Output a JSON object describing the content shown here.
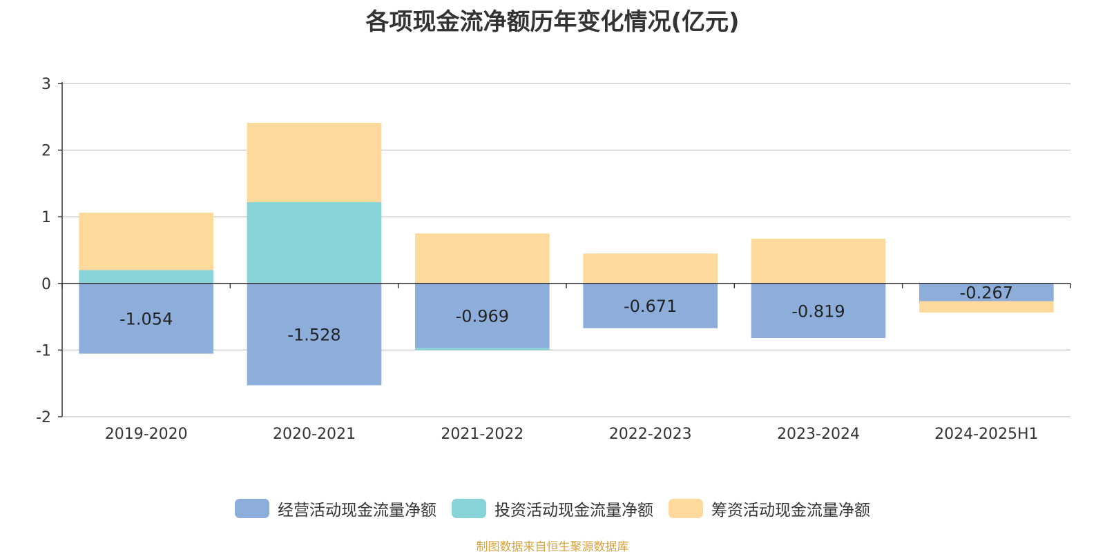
{
  "title": "各项现金流净额历年变化情况(亿元)",
  "source_note": "制图数据来自恒生聚源数据库",
  "colors": {
    "operating": "#8DAEDB",
    "investing": "#86D4D8",
    "financing": "#FED99B",
    "source": "#D9A441"
  },
  "chart_data": {
    "type": "bar",
    "stacked": true,
    "title": "各项现金流净额历年变化情况(亿元)",
    "categories": [
      "2019-2020",
      "2020-2021",
      "2021-2022",
      "2022-2023",
      "2023-2024",
      "2024-2025H1"
    ],
    "ylim": [
      -2,
      3
    ],
    "yticks": [
      -2,
      -1,
      0,
      1,
      2,
      3
    ],
    "grid": true,
    "legend_position": "bottom",
    "series": [
      {
        "name": "经营活动现金流量净额",
        "color": "#8DAEDB",
        "values": [
          -1.054,
          -1.528,
          -0.969,
          -0.671,
          -0.819,
          -0.267
        ],
        "data_labels": [
          "-1.054",
          "-1.528",
          "-0.969",
          "-0.671",
          "-0.819",
          "-0.267"
        ]
      },
      {
        "name": "投资活动现金流量净额",
        "color": "#86D4D8",
        "values": [
          0.2,
          1.22,
          -0.03,
          0.0,
          0.0,
          0.0
        ]
      },
      {
        "name": "筹资活动现金流量净额",
        "color": "#FED99B",
        "values": [
          0.86,
          1.19,
          0.75,
          0.45,
          0.67,
          -0.17
        ]
      }
    ]
  }
}
